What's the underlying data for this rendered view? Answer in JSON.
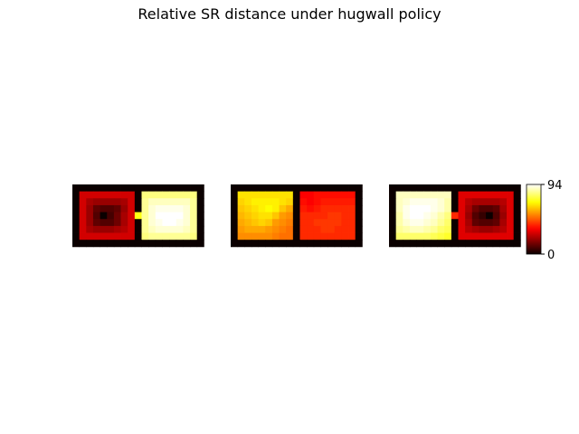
{
  "chart_data": {
    "type": "heatmap",
    "title": "Relative SR distance under hugwall policy",
    "colormap": "hot",
    "colorbar": {
      "min": 0,
      "max": 94,
      "ticks": [
        0,
        94
      ]
    },
    "grid_legend": {
      "W": "wall",
      "o": "open cell",
      "-": "no cell"
    },
    "panels": [
      {
        "grid": [
          "WWWWWWWWWWWWWWWWWWW",
          "WoooooooWooooooooW",
          "WoooooooWooooooooW",
          "WoooooooWooooooooW",
          "WoooooooooooooooooW",
          "WoooooooWooooooooW",
          "WoooooooWooooooooW",
          "WoooooooWooooooooW",
          "WWWWWWWWWWWWWWWWWWW"
        ],
        "values": [
          [
            null,
            null,
            null,
            null,
            null,
            null,
            null,
            null,
            null,
            null,
            null,
            null,
            null,
            null,
            null,
            null,
            null,
            null,
            null
          ],
          [
            null,
            28,
            28,
            28,
            28,
            28,
            28,
            28,
            28,
            null,
            82,
            82,
            82,
            82,
            82,
            82,
            82,
            82,
            null
          ],
          [
            null,
            28,
            22,
            20,
            20,
            20,
            20,
            22,
            28,
            null,
            84,
            88,
            88,
            88,
            88,
            88,
            88,
            84,
            null
          ],
          [
            null,
            28,
            20,
            12,
            10,
            10,
            12,
            20,
            28,
            null,
            84,
            90,
            92,
            92,
            92,
            92,
            90,
            84,
            null
          ],
          [
            null,
            28,
            20,
            10,
            0,
            8,
            14,
            22,
            28,
            72,
            84,
            90,
            94,
            94,
            94,
            94,
            90,
            84,
            null
          ],
          [
            null,
            28,
            20,
            12,
            10,
            10,
            14,
            22,
            28,
            null,
            84,
            90,
            92,
            94,
            94,
            92,
            90,
            84,
            null
          ],
          [
            null,
            28,
            22,
            20,
            20,
            20,
            22,
            24,
            28,
            null,
            84,
            88,
            90,
            90,
            90,
            90,
            88,
            84,
            null
          ],
          [
            null,
            28,
            28,
            28,
            28,
            28,
            28,
            28,
            28,
            null,
            82,
            84,
            84,
            84,
            84,
            84,
            84,
            82,
            null
          ],
          [
            null,
            null,
            null,
            null,
            null,
            null,
            null,
            null,
            null,
            null,
            null,
            null,
            null,
            null,
            null,
            null,
            null,
            null,
            null
          ]
        ]
      },
      {
        "grid": [
          "WWWWWWWWWWWWWWWWWWW",
          "WoooooooWooooooooW",
          "WoooooooWooooooooW",
          "WoooooooWooooooooW",
          "WoooooooWooooooooW",
          "WoooooooWooooooooW",
          "WoooooooWooooooooW",
          "WoooooooWooooooooW",
          "WWWWWWWWWWWWWWWWWWW"
        ],
        "values": [
          [
            null,
            null,
            null,
            null,
            null,
            null,
            null,
            null,
            null,
            null,
            null,
            null,
            null,
            null,
            null,
            null,
            null,
            null,
            null
          ],
          [
            null,
            66,
            66,
            66,
            66,
            66,
            66,
            66,
            66,
            null,
            34,
            34,
            36,
            36,
            36,
            36,
            36,
            36,
            null
          ],
          [
            null,
            64,
            66,
            68,
            68,
            68,
            68,
            66,
            64,
            null,
            36,
            34,
            36,
            38,
            38,
            38,
            38,
            38,
            null
          ],
          [
            null,
            62,
            64,
            66,
            68,
            70,
            68,
            62,
            58,
            null,
            38,
            36,
            38,
            40,
            40,
            40,
            40,
            40,
            null
          ],
          [
            null,
            60,
            62,
            64,
            66,
            66,
            62,
            56,
            54,
            null,
            40,
            40,
            40,
            40,
            42,
            42,
            40,
            40,
            null
          ],
          [
            null,
            58,
            60,
            62,
            64,
            62,
            56,
            54,
            52,
            null,
            40,
            40,
            42,
            42,
            42,
            42,
            40,
            40,
            null
          ],
          [
            null,
            56,
            58,
            58,
            58,
            56,
            54,
            52,
            50,
            null,
            40,
            40,
            40,
            42,
            42,
            40,
            40,
            40,
            null
          ],
          [
            null,
            54,
            54,
            54,
            54,
            54,
            52,
            50,
            50,
            null,
            40,
            40,
            40,
            40,
            40,
            40,
            40,
            40,
            null
          ],
          [
            null,
            null,
            null,
            null,
            null,
            null,
            null,
            null,
            null,
            null,
            null,
            null,
            null,
            null,
            null,
            null,
            null,
            null,
            null
          ]
        ]
      },
      {
        "grid": [
          "WWWWWWWWWWWWWWWWWWW",
          "WoooooooWooooooooW",
          "WoooooooWooooooooW",
          "WoooooooWooooooooW",
          "WoooooooooooooooooW",
          "WoooooooWooooooooW",
          "WoooooooWooooooooW",
          "WoooooooWooooooooW",
          "WWWWWWWWWWWWWWWWWWW"
        ],
        "values": [
          [
            null,
            null,
            null,
            null,
            null,
            null,
            null,
            null,
            null,
            null,
            null,
            null,
            null,
            null,
            null,
            null,
            null,
            null,
            null
          ],
          [
            null,
            88,
            88,
            88,
            88,
            88,
            88,
            88,
            88,
            null,
            30,
            30,
            30,
            30,
            30,
            30,
            30,
            30,
            null
          ],
          [
            null,
            88,
            90,
            92,
            92,
            92,
            92,
            90,
            86,
            null,
            30,
            24,
            22,
            22,
            22,
            22,
            24,
            30,
            null
          ],
          [
            null,
            88,
            92,
            94,
            94,
            94,
            92,
            90,
            86,
            null,
            30,
            22,
            14,
            10,
            10,
            12,
            22,
            30,
            null
          ],
          [
            null,
            86,
            92,
            94,
            94,
            92,
            90,
            86,
            82,
            40,
            30,
            20,
            10,
            6,
            0,
            10,
            20,
            30,
            null
          ],
          [
            null,
            86,
            90,
            92,
            92,
            90,
            88,
            84,
            80,
            null,
            30,
            22,
            12,
            10,
            10,
            12,
            22,
            30,
            null
          ],
          [
            null,
            84,
            86,
            88,
            88,
            86,
            84,
            80,
            78,
            null,
            30,
            24,
            22,
            20,
            20,
            22,
            24,
            30,
            null
          ],
          [
            null,
            80,
            80,
            80,
            80,
            80,
            78,
            76,
            74,
            null,
            30,
            30,
            30,
            30,
            30,
            30,
            30,
            30,
            null
          ],
          [
            null,
            null,
            null,
            null,
            null,
            null,
            null,
            null,
            null,
            null,
            null,
            null,
            null,
            null,
            null,
            null,
            null,
            null,
            null
          ]
        ]
      }
    ]
  }
}
